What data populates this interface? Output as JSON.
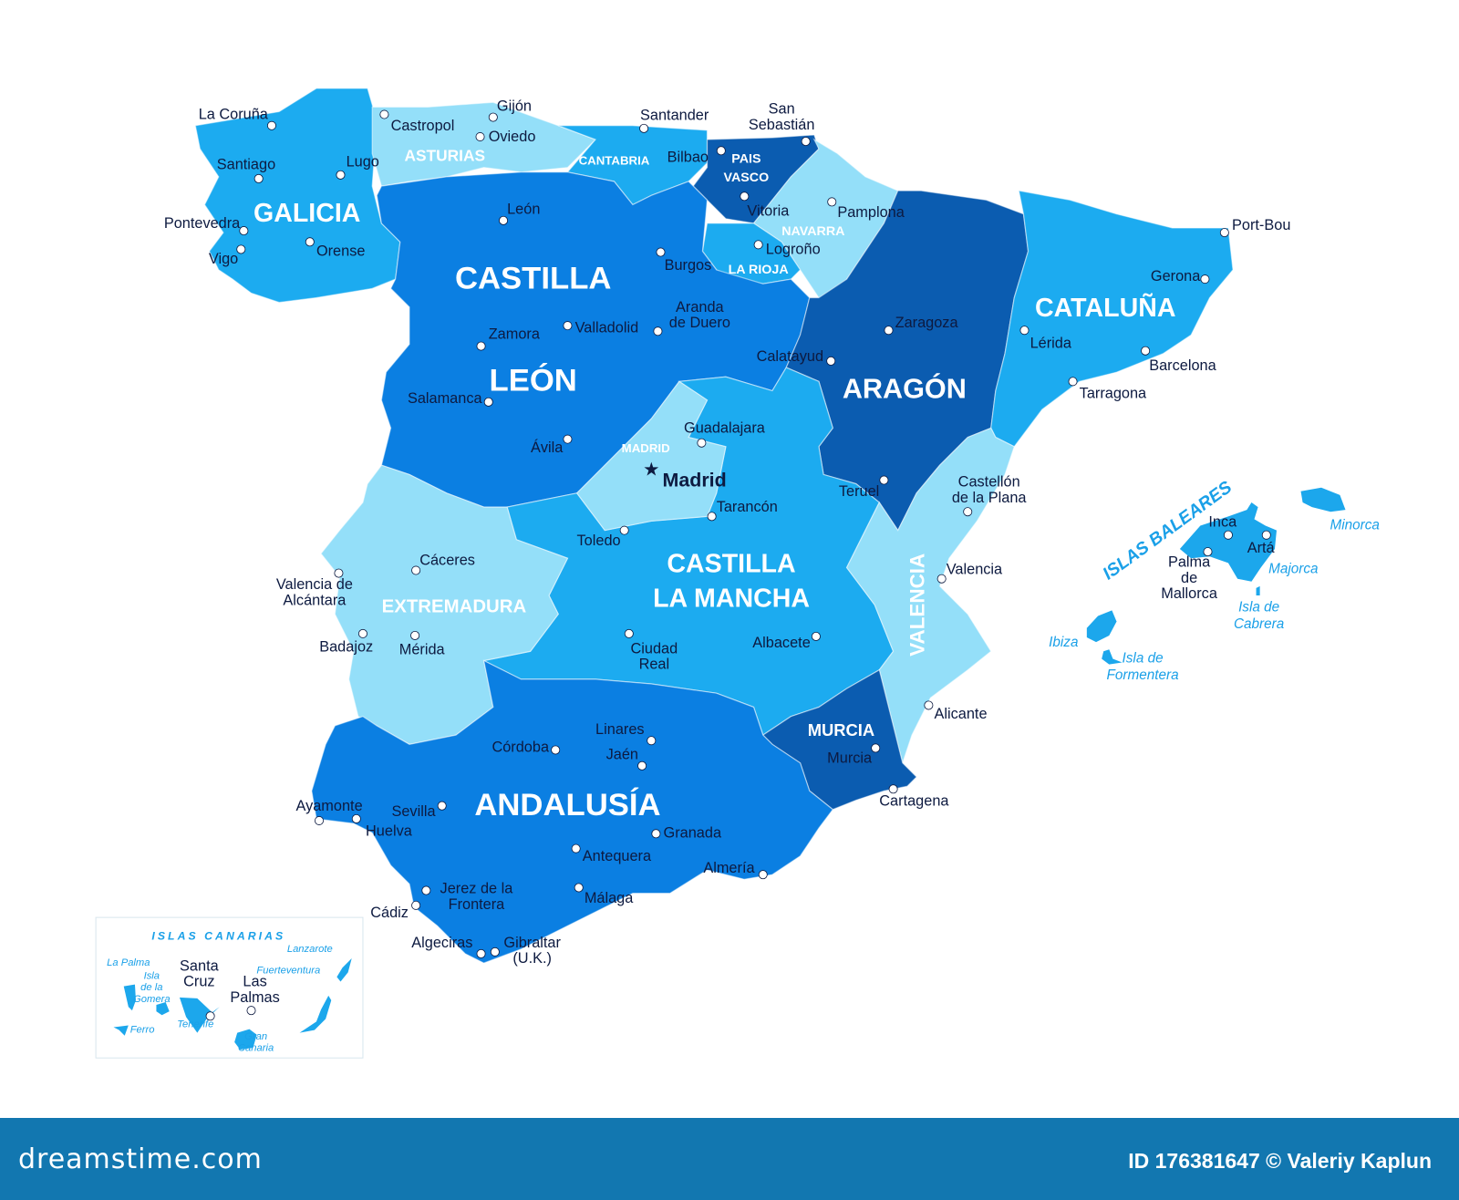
{
  "colors": {
    "dark": "#0b5cb0",
    "medium": "#0b7fe2",
    "light": "#1cabf0",
    "pale": "#94dff9",
    "island": "#1ca7ec",
    "text": "#0d1a40",
    "footer": "#1277b0"
  },
  "regions": [
    {
      "id": "galicia",
      "label": [
        "GALICIA"
      ],
      "tone": "light"
    },
    {
      "id": "asturias",
      "label": [
        "ASTURIAS"
      ],
      "tone": "pale"
    },
    {
      "id": "cantabria",
      "label": [
        "CANTABRIA"
      ],
      "tone": "light"
    },
    {
      "id": "pais-vasco",
      "label": [
        "PAIS",
        "VASCO"
      ],
      "tone": "dark"
    },
    {
      "id": "navarra",
      "label": [
        "NAVARRA"
      ],
      "tone": "pale"
    },
    {
      "id": "la-rioja",
      "label": [
        "LA RIOJA"
      ],
      "tone": "light"
    },
    {
      "id": "castilla-leon",
      "label": [
        "CASTILLA",
        "LEÓN"
      ],
      "tone": "medium"
    },
    {
      "id": "aragon",
      "label": [
        "ARAGÓN"
      ],
      "tone": "dark"
    },
    {
      "id": "cataluna",
      "label": [
        "CATALUÑA"
      ],
      "tone": "light"
    },
    {
      "id": "castilla-la-mancha",
      "label": [
        "CASTILLA",
        "LA MANCHA"
      ],
      "tone": "light"
    },
    {
      "id": "madrid",
      "label": [
        "MADRID"
      ],
      "tone": "pale"
    },
    {
      "id": "valencia",
      "label": [
        "VALENCIA"
      ],
      "tone": "pale"
    },
    {
      "id": "murcia",
      "label": [
        "MURCIA"
      ],
      "tone": "dark"
    },
    {
      "id": "extremadura",
      "label": [
        "EXTREMADURA"
      ],
      "tone": "pale"
    },
    {
      "id": "andalusia",
      "label": [
        "ANDALUSÍA"
      ],
      "tone": "medium"
    }
  ],
  "capital": {
    "name": "Madrid",
    "icon": "star-icon"
  },
  "cities": [
    {
      "name": [
        "La Coruña"
      ]
    },
    {
      "name": [
        "Santiago"
      ]
    },
    {
      "name": [
        "Lugo"
      ]
    },
    {
      "name": [
        "Pontevedra"
      ]
    },
    {
      "name": [
        "Vigo"
      ]
    },
    {
      "name": [
        "Orense"
      ]
    },
    {
      "name": [
        "Castropol"
      ]
    },
    {
      "name": [
        "Gijón"
      ]
    },
    {
      "name": [
        "Oviedo"
      ]
    },
    {
      "name": [
        "Santander"
      ]
    },
    {
      "name": [
        "San",
        "Sebastián"
      ]
    },
    {
      "name": [
        "Bilbao"
      ]
    },
    {
      "name": [
        "Vitoria"
      ]
    },
    {
      "name": [
        "Pamplona"
      ]
    },
    {
      "name": [
        "Logroño"
      ]
    },
    {
      "name": [
        "Burgos"
      ]
    },
    {
      "name": [
        "León"
      ]
    },
    {
      "name": [
        "Aranda",
        "de Duero"
      ]
    },
    {
      "name": [
        "Valladolid"
      ]
    },
    {
      "name": [
        "Zamora"
      ]
    },
    {
      "name": [
        "Calatayud"
      ]
    },
    {
      "name": [
        "Zaragoza"
      ]
    },
    {
      "name": [
        "Lérida"
      ]
    },
    {
      "name": [
        "Gerona"
      ]
    },
    {
      "name": [
        "Port-Bou"
      ]
    },
    {
      "name": [
        "Barcelona"
      ]
    },
    {
      "name": [
        "Tarragona"
      ]
    },
    {
      "name": [
        "Salamanca"
      ]
    },
    {
      "name": [
        "Ávila"
      ]
    },
    {
      "name": [
        "Guadalajara"
      ]
    },
    {
      "name": [
        "Tarancón"
      ]
    },
    {
      "name": [
        "Toledo"
      ]
    },
    {
      "name": [
        "Teruel"
      ]
    },
    {
      "name": [
        "Castellón",
        "de la Plana"
      ]
    },
    {
      "name": [
        "Valencia"
      ]
    },
    {
      "name": [
        "Cáceres"
      ]
    },
    {
      "name": [
        "Valencia de",
        "Alcántara"
      ]
    },
    {
      "name": [
        "Badajoz"
      ]
    },
    {
      "name": [
        "Mérida"
      ]
    },
    {
      "name": [
        "Ciudad",
        "Real"
      ]
    },
    {
      "name": [
        "Albacete"
      ]
    },
    {
      "name": [
        "Alicante"
      ]
    },
    {
      "name": [
        "Murcia"
      ]
    },
    {
      "name": [
        "Cartagena"
      ]
    },
    {
      "name": [
        "Linares"
      ]
    },
    {
      "name": [
        "Jaén"
      ]
    },
    {
      "name": [
        "Córdoba"
      ]
    },
    {
      "name": [
        "Ayamonte"
      ]
    },
    {
      "name": [
        "Sevilla"
      ]
    },
    {
      "name": [
        "Huelva"
      ]
    },
    {
      "name": [
        "Granada"
      ]
    },
    {
      "name": [
        "Antequera"
      ]
    },
    {
      "name": [
        "Almería"
      ]
    },
    {
      "name": [
        "Jerez de la",
        "Frontera"
      ]
    },
    {
      "name": [
        "Málaga"
      ]
    },
    {
      "name": [
        "Cádiz"
      ]
    },
    {
      "name": [
        "Algeciras"
      ]
    },
    {
      "name": [
        "Gibraltar",
        "(U.K.)"
      ]
    },
    {
      "name": [
        "Inca"
      ]
    },
    {
      "name": [
        "Artá"
      ]
    },
    {
      "name": [
        "Palma",
        "de",
        "Mallorca"
      ]
    },
    {
      "name": [
        "Santa",
        "Cruz"
      ]
    },
    {
      "name": [
        "Las",
        "Palmas"
      ]
    }
  ],
  "baleares": {
    "title": "ISLAS BALEARES",
    "islands": [
      {
        "name": [
          "Minorca"
        ]
      },
      {
        "name": [
          "Majorca"
        ]
      },
      {
        "name": [
          "Isla de",
          "Cabrera"
        ]
      },
      {
        "name": [
          "Ibiza"
        ]
      },
      {
        "name": [
          "Isla de",
          "Formentera"
        ]
      }
    ]
  },
  "canarias": {
    "title": "ISLAS CANARIAS",
    "islands": [
      {
        "name": [
          "La Palma"
        ]
      },
      {
        "name": [
          "Isla",
          "de la",
          "Gomera"
        ]
      },
      {
        "name": [
          "Lanzarote"
        ]
      },
      {
        "name": [
          "Fuerteventura"
        ]
      },
      {
        "name": [
          "Tenerife"
        ]
      },
      {
        "name": [
          "Ferro"
        ]
      },
      {
        "name": [
          "Gran",
          "Canaria"
        ]
      }
    ]
  },
  "footer": {
    "logo": "dreamstime.com",
    "credit": "ID 176381647 © Valeriy Kaplun"
  }
}
